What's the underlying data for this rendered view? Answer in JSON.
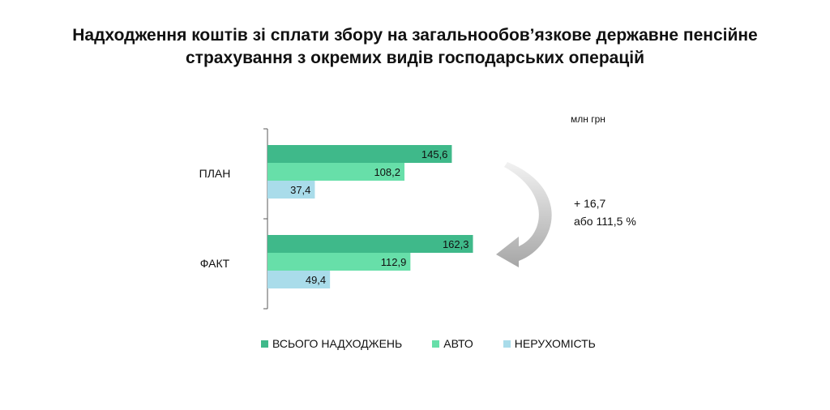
{
  "chart_data": {
    "type": "bar",
    "orientation": "horizontal",
    "title_lines": [
      "Надходження коштів зі сплати збору на загальнообов’язкове державне пенсійне",
      "страхування з окремих видів господарських операцій"
    ],
    "units": "млн грн",
    "categories": [
      "ПЛАН",
      "ФАКТ"
    ],
    "series": [
      {
        "name": "ВСЬОГО НАДХОДЖЕНЬ",
        "values": [
          145.6,
          162.3
        ],
        "labels": [
          "145,6",
          "162,3"
        ],
        "color": "#3fb98a"
      },
      {
        "name": "АВТО",
        "values": [
          108.2,
          112.9
        ],
        "labels": [
          "108,2",
          "112,9"
        ],
        "color": "#67dfa9"
      },
      {
        "name": "НЕРУХОМІСТЬ",
        "values": [
          37.4,
          49.4
        ],
        "labels": [
          "37,4",
          "49,4"
        ],
        "color": "#a9dcea"
      }
    ],
    "xlim": [
      0,
      180
    ],
    "grid": false,
    "legend_position": "bottom",
    "annotation": {
      "lines": [
        "+ 16,7",
        "або 111,5 %"
      ],
      "arrow": "from ПЛАН to ФАКТ"
    }
  }
}
